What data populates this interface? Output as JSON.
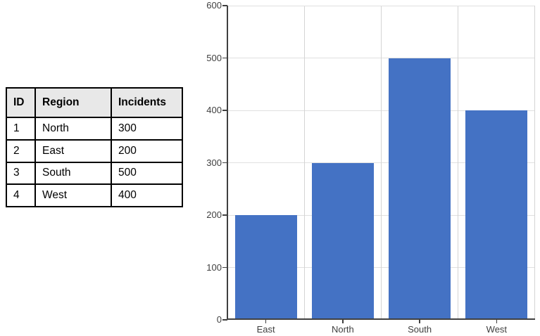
{
  "table": {
    "headers": [
      "ID",
      "Region",
      "Incidents"
    ],
    "rows": [
      [
        "1",
        "North",
        "300"
      ],
      [
        "2",
        "East",
        "200"
      ],
      [
        "3",
        "South",
        "500"
      ],
      [
        "4",
        "West",
        "400"
      ]
    ]
  },
  "chart_data": {
    "type": "bar",
    "categories": [
      "East",
      "North",
      "South",
      "West"
    ],
    "values": [
      200,
      300,
      500,
      400
    ],
    "title": "",
    "xlabel": "",
    "ylabel": "",
    "ylim": [
      0,
      600
    ],
    "ytick_interval": 100,
    "grid": true,
    "legend": "none"
  },
  "colors": {
    "bar": "#4472C4",
    "grid": "#e0e0e0",
    "grid_vertical": "#d4d4d4",
    "axis": "#404040",
    "tick_label": "#3f3f3f",
    "table_header_bg": "#e8e8e8",
    "table_border": "#000000"
  }
}
